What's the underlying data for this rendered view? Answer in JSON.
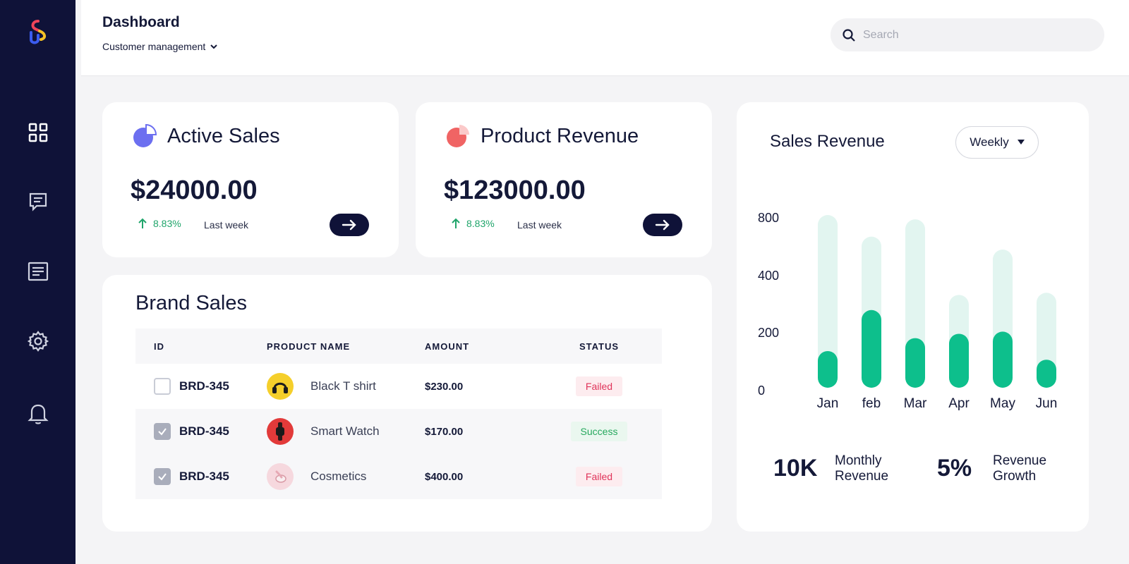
{
  "header": {
    "title": "Dashboard",
    "breadcrumb": "Customer management"
  },
  "search": {
    "placeholder": "Search"
  },
  "sidebar": {
    "items": [
      {
        "name": "dashboard",
        "icon": "grid-icon"
      },
      {
        "name": "messages",
        "icon": "message-icon"
      },
      {
        "name": "documents",
        "icon": "document-icon"
      },
      {
        "name": "settings",
        "icon": "gear-icon"
      },
      {
        "name": "notifications",
        "icon": "bell-icon"
      }
    ]
  },
  "stats": [
    {
      "title": "Active Sales",
      "value": "$24000.00",
      "change": "8.83%",
      "period": "Last week",
      "icon_color": "#6c6ff0"
    },
    {
      "title": "Product Revenue",
      "value": "$123000.00",
      "change": "8.83%",
      "period": "Last week",
      "icon_color": "#f06464"
    }
  ],
  "brand_sales": {
    "title": "Brand Sales",
    "columns": [
      "ID",
      "PRODUCT NAME",
      "AMOUNT",
      "STATUS"
    ],
    "rows": [
      {
        "id": "BRD-345",
        "checked": false,
        "product": "Black T shirt",
        "amount": "$230.00",
        "status": "Failed"
      },
      {
        "id": "BRD-345",
        "checked": true,
        "product": "Smart Watch",
        "amount": "$170.00",
        "status": "Success"
      },
      {
        "id": "BRD-345",
        "checked": true,
        "product": "Cosmetics",
        "amount": "$400.00",
        "status": "Failed"
      }
    ]
  },
  "sales_revenue": {
    "title": "Sales Revenue",
    "period": "Weekly",
    "metrics": [
      {
        "value": "10K",
        "label": "Monthly Revenue"
      },
      {
        "value": "5%",
        "label": "Revenue Growth"
      }
    ]
  },
  "colors": {
    "accent": "#0dbf8c",
    "accent_light": "#e2f5f0",
    "sidebar": "#0f1238"
  },
  "chart_data": {
    "type": "bar",
    "categories": [
      "Jan",
      "feb",
      "Mar",
      "Apr",
      "May",
      "Jun"
    ],
    "y_ticks": [
      "800",
      "400",
      "200",
      "0"
    ],
    "series": [
      {
        "values": [
          170,
          360,
          230,
          250,
          260,
          130
        ]
      },
      {
        "values": [
          800,
          700,
          780,
          430,
          640,
          440
        ]
      }
    ],
    "ylim": [
      0,
      800
    ]
  }
}
